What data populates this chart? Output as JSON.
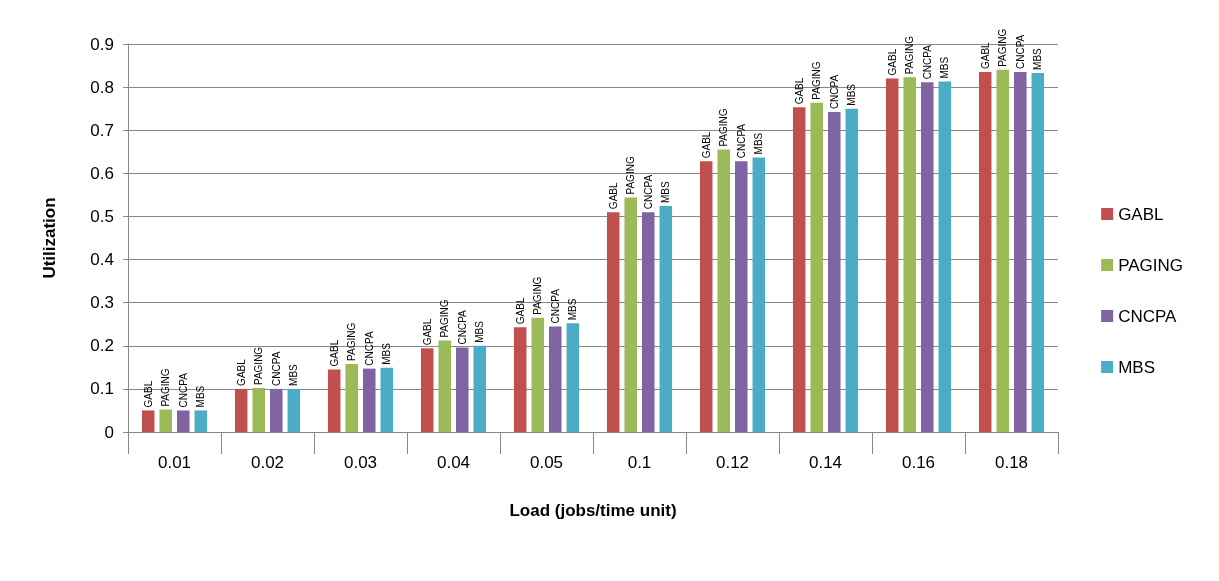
{
  "chart_data": {
    "type": "bar",
    "xlabel": "Load (jobs/time unit)",
    "ylabel": "Utilization",
    "categories": [
      "0.01",
      "0.02",
      "0.03",
      "0.04",
      "0.05",
      "0.1",
      "0.12",
      "0.14",
      "0.16",
      "0.18"
    ],
    "series": [
      {
        "name": "GABL",
        "color": "#c0504d",
        "values": [
          0.05,
          0.1,
          0.145,
          0.194,
          0.243,
          0.51,
          0.628,
          0.753,
          0.82,
          0.835
        ]
      },
      {
        "name": "PAGING",
        "color": "#9bbb59",
        "values": [
          0.052,
          0.102,
          0.158,
          0.212,
          0.265,
          0.544,
          0.655,
          0.764,
          0.823,
          0.84
        ]
      },
      {
        "name": "CNCPA",
        "color": "#8064a2",
        "values": [
          0.05,
          0.1,
          0.147,
          0.196,
          0.245,
          0.51,
          0.628,
          0.742,
          0.811,
          0.835
        ]
      },
      {
        "name": "MBS",
        "color": "#4bacc6",
        "values": [
          0.05,
          0.1,
          0.149,
          0.2,
          0.252,
          0.524,
          0.637,
          0.75,
          0.813,
          0.833
        ]
      }
    ],
    "ylim": [
      0,
      0.9
    ],
    "yticks": [
      0,
      0.1,
      0.2,
      0.3,
      0.4,
      0.5,
      0.6,
      0.7,
      0.8,
      0.9
    ],
    "grid": "y",
    "legend": "right"
  }
}
